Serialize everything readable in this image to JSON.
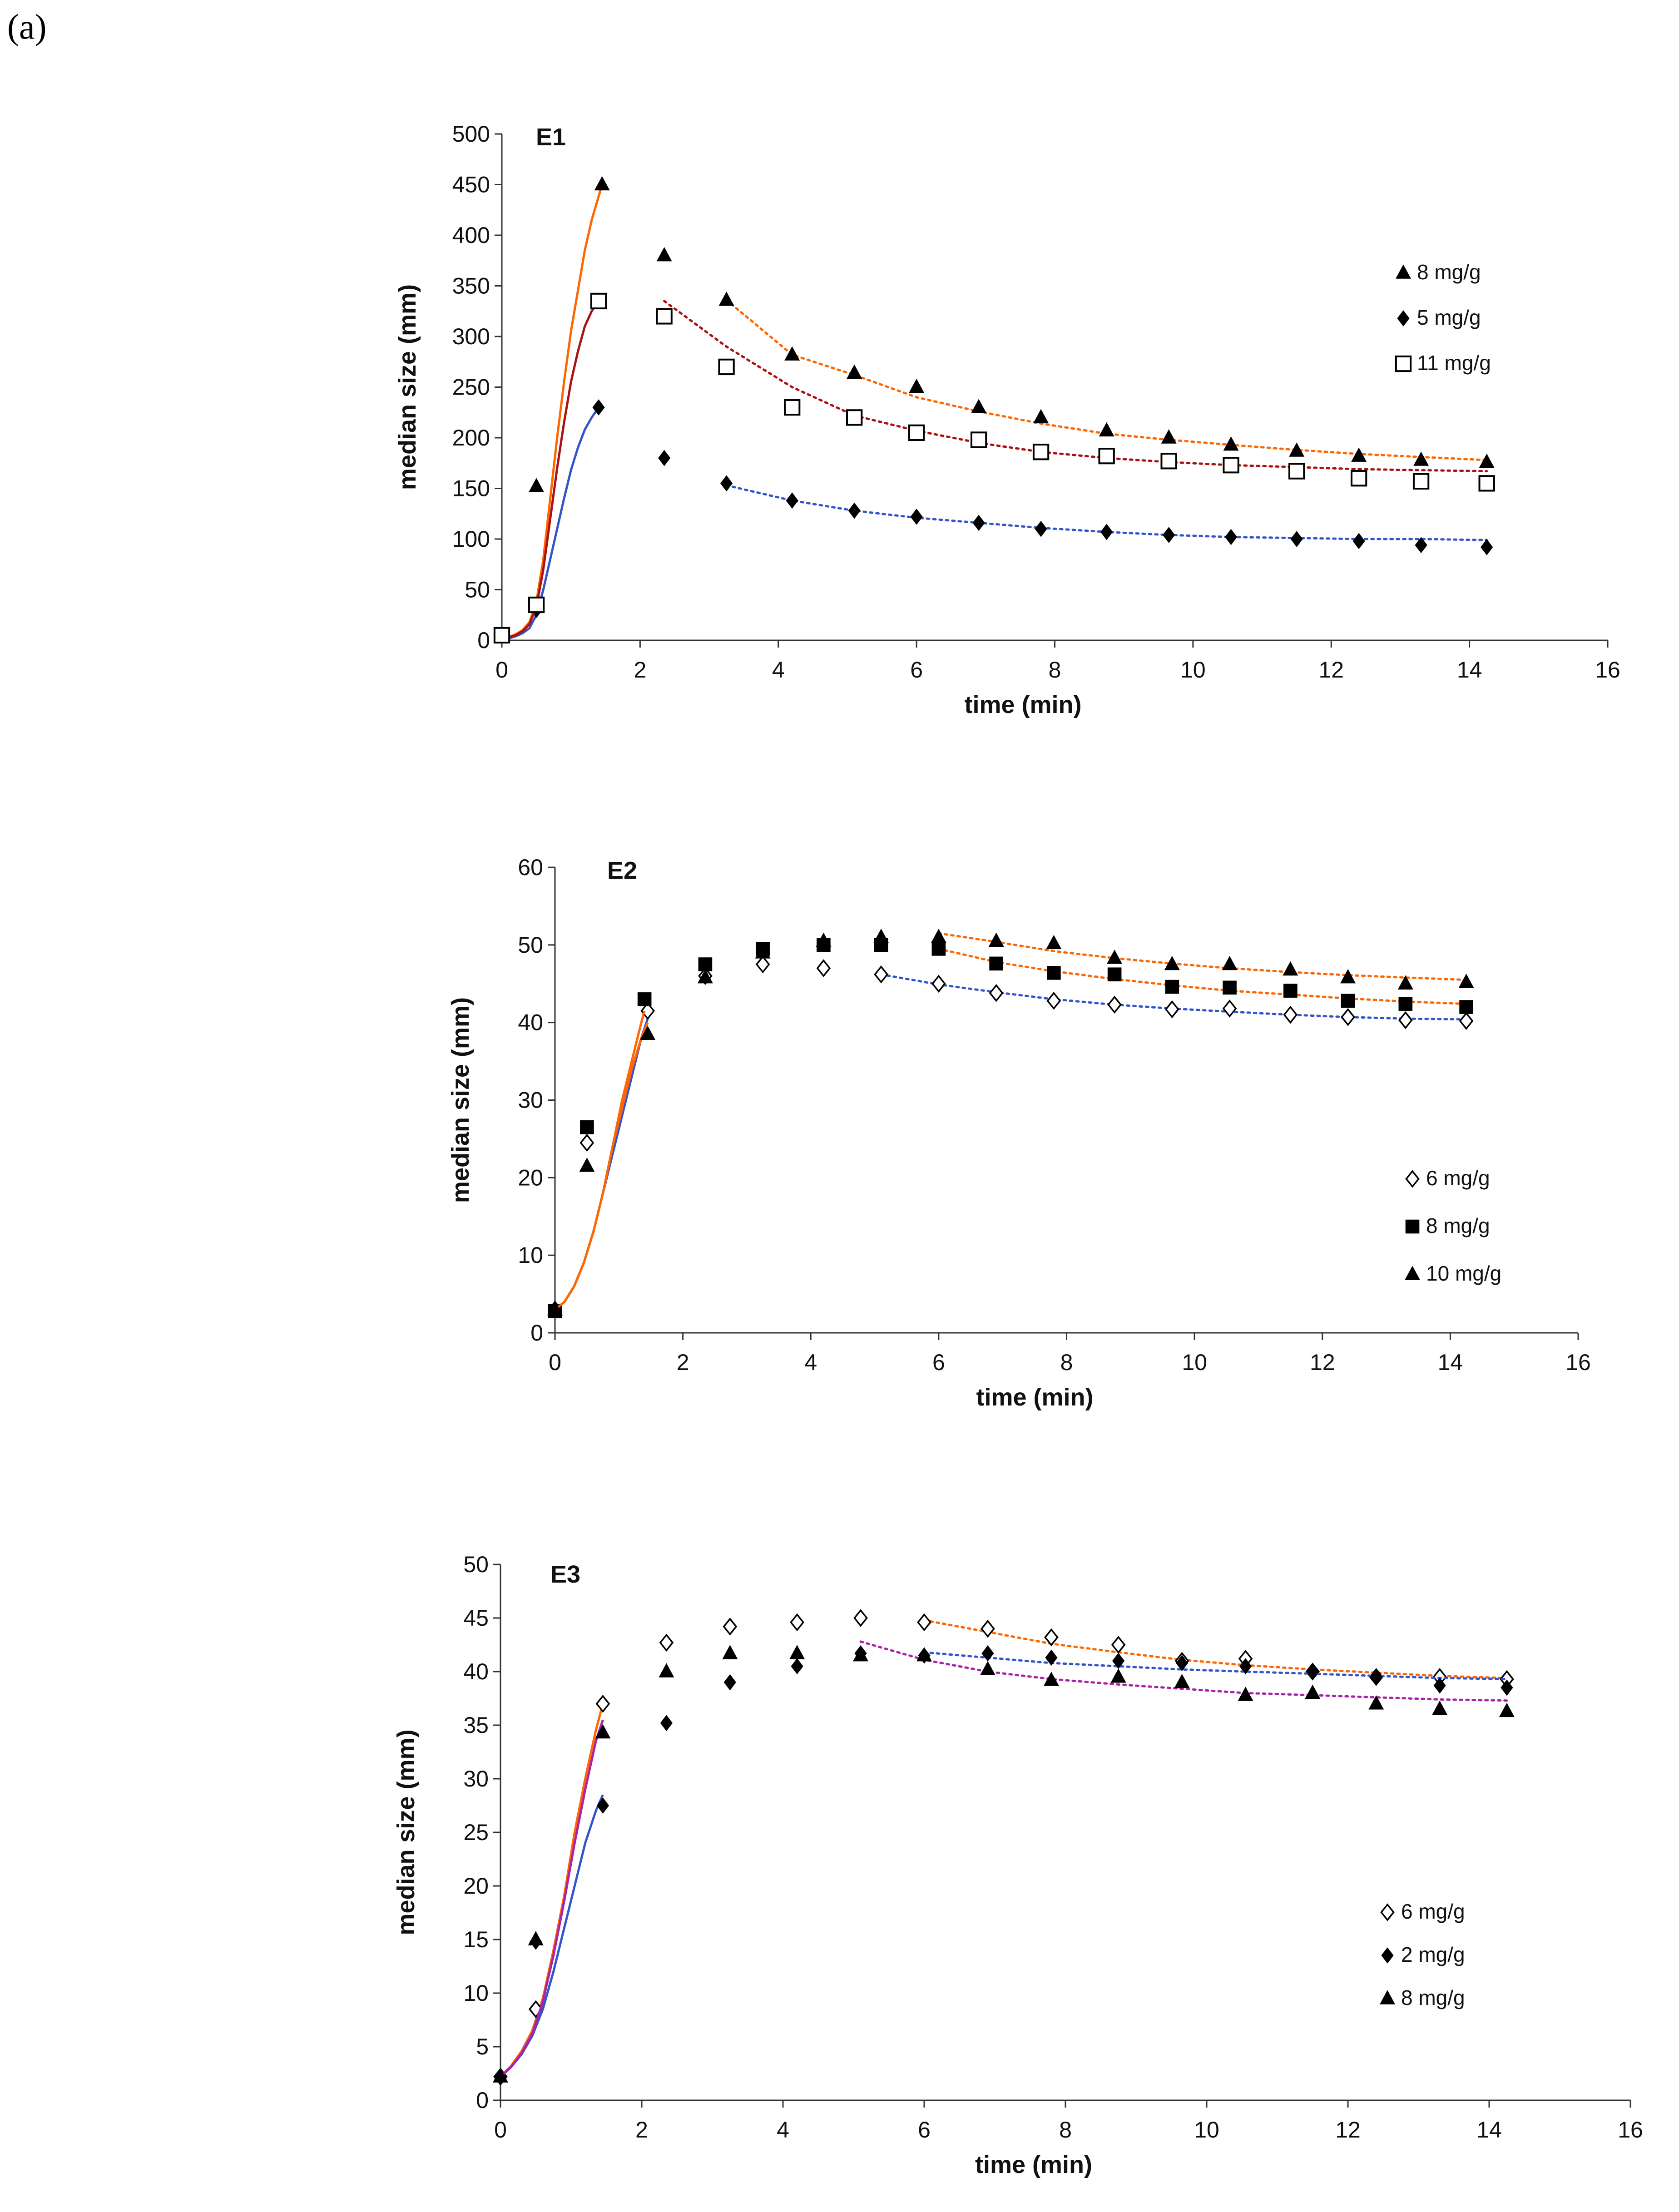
{
  "figure_label": "(a)",
  "chart_data": [
    {
      "type": "scatter",
      "title": "E1",
      "xlabel": "time (min)",
      "ylabel": "median size (mm)",
      "xlim": [
        0,
        16
      ],
      "ylim": [
        0,
        500
      ],
      "xticks": [
        0,
        2,
        4,
        6,
        8,
        10,
        12,
        14,
        16
      ],
      "yticks": [
        0,
        50,
        100,
        150,
        200,
        250,
        300,
        350,
        400,
        450,
        500
      ],
      "legend_position": "right",
      "series": [
        {
          "name": "8 mg/g",
          "marker": "triangle",
          "color": "#ff6600",
          "x": [
            0.5,
            1.45,
            2.35,
            3.25,
            4.2,
            5.1,
            6.0,
            6.9,
            7.8,
            8.75,
            9.65,
            10.55,
            11.5,
            12.4,
            13.3,
            14.25
          ],
          "y": [
            152,
            450,
            380,
            336,
            282,
            264,
            250,
            230,
            220,
            207,
            200,
            193,
            187,
            182,
            178,
            176
          ],
          "growth_curve": {
            "x": [
              0,
              0.1,
              0.2,
              0.3,
              0.4,
              0.5,
              0.6,
              0.7,
              0.8,
              0.9,
              1.0,
              1.1,
              1.2,
              1.3,
              1.45
            ],
            "y": [
              2,
              3,
              6,
              10,
              18,
              38,
              80,
              140,
              200,
              255,
              305,
              345,
              385,
              415,
              450
            ]
          },
          "decay_curve": {
            "x": [
              3.25,
              4.2,
              5.1,
              6.0,
              6.9,
              7.8,
              8.75,
              9.65,
              10.55,
              11.5,
              12.4,
              13.3,
              14.25
            ],
            "y": [
              336,
              282,
              262,
              240,
              226,
              214,
              204,
              198,
              193,
              188,
              184,
              181,
              178
            ]
          }
        },
        {
          "name": "5 mg/g",
          "marker": "diamond",
          "color": "#3355cc",
          "x": [
            0.5,
            1.4,
            2.35,
            3.25,
            4.2,
            5.1,
            6.0,
            6.9,
            7.8,
            8.75,
            9.65,
            10.55,
            11.5,
            12.4,
            13.3,
            14.25
          ],
          "y": [
            30,
            230,
            180,
            155,
            138,
            128,
            122,
            116,
            110,
            107,
            104,
            102,
            100,
            98,
            94,
            92
          ],
          "growth_curve": {
            "x": [
              0,
              0.1,
              0.2,
              0.3,
              0.4,
              0.5,
              0.6,
              0.7,
              0.8,
              0.9,
              1.0,
              1.1,
              1.2,
              1.3,
              1.4
            ],
            "y": [
              1,
              2,
              4,
              7,
              12,
              25,
              50,
              80,
              110,
              140,
              168,
              190,
              208,
              220,
              230
            ]
          },
          "decay_curve": {
            "x": [
              3.25,
              4.2,
              5.1,
              6.0,
              6.9,
              7.8,
              8.75,
              9.65,
              10.55,
              11.5,
              12.4,
              13.3,
              14.25
            ],
            "y": [
              153,
              138,
              128,
              121,
              116,
              111,
              107,
              104,
              102,
              101,
              100,
              100,
              99
            ]
          }
        },
        {
          "name": "11 mg/g",
          "marker": "square-open",
          "color": "#aa1111",
          "x": [
            0,
            0.5,
            1.4,
            2.35,
            3.25,
            4.2,
            5.1,
            6.0,
            6.9,
            7.8,
            8.75,
            9.65,
            10.55,
            11.5,
            12.4,
            13.3,
            14.25
          ],
          "y": [
            5,
            35,
            335,
            320,
            270,
            230,
            220,
            205,
            198,
            186,
            182,
            177,
            173,
            167,
            160,
            157,
            155
          ],
          "growth_curve": {
            "x": [
              0,
              0.1,
              0.2,
              0.3,
              0.4,
              0.5,
              0.6,
              0.7,
              0.8,
              0.9,
              1.0,
              1.1,
              1.2,
              1.3,
              1.4
            ],
            "y": [
              2,
              3,
              5,
              9,
              16,
              33,
              70,
              120,
              170,
              215,
              255,
              285,
              310,
              325,
              335
            ]
          },
          "decay_curve": {
            "x": [
              2.35,
              3.25,
              4.2,
              5.1,
              6.0,
              6.9,
              7.8,
              8.75,
              9.65,
              10.55,
              11.5,
              12.4,
              13.3,
              14.25
            ],
            "y": [
              335,
              290,
              250,
              222,
              207,
              195,
              186,
              180,
              176,
              173,
              171,
              169,
              168,
              167
            ]
          }
        }
      ]
    },
    {
      "type": "scatter",
      "title": "E2",
      "xlabel": "time (min)",
      "ylabel": "median size (mm)",
      "xlim": [
        0,
        16
      ],
      "ylim": [
        0,
        60
      ],
      "xticks": [
        0,
        2,
        4,
        6,
        8,
        10,
        12,
        14,
        16
      ],
      "yticks": [
        0,
        10,
        20,
        30,
        40,
        50,
        60
      ],
      "legend_position": "right",
      "series": [
        {
          "name": "6 mg/g",
          "marker": "diamond-open",
          "color": "#3355cc",
          "x": [
            0,
            0.5,
            1.45,
            2.35,
            3.25,
            4.2,
            5.1,
            6.0,
            6.9,
            7.8,
            8.75,
            9.65,
            10.55,
            11.5,
            12.4,
            13.3,
            14.25
          ],
          "y": [
            3,
            24.5,
            41.5,
            46,
            47.5,
            47,
            46.2,
            45,
            43.8,
            42.8,
            42.3,
            41.7,
            41.8,
            41,
            40.7,
            40.3,
            40.2
          ],
          "growth_curve": {
            "x": [
              0,
              0.15,
              0.3,
              0.45,
              0.6,
              0.75,
              0.9,
              1.05,
              1.2,
              1.35,
              1.45
            ],
            "y": [
              3,
              4,
              6,
              9,
              13,
              18,
              23,
              28,
              33,
              38,
              40.5
            ]
          },
          "decay_curve": {
            "x": [
              5.1,
              6.0,
              6.9,
              7.8,
              8.75,
              9.65,
              10.55,
              11.5,
              12.4,
              13.3,
              14.25
            ],
            "y": [
              46.2,
              44.9,
              43.9,
              43.0,
              42.3,
              41.8,
              41.4,
              41.0,
              40.7,
              40.5,
              40.4
            ]
          }
        },
        {
          "name": "8 mg/g",
          "marker": "square",
          "color": "#ff6600",
          "x": [
            0,
            0.5,
            1.4,
            2.35,
            3.25,
            4.2,
            5.1,
            6.0,
            6.9,
            7.8,
            8.75,
            9.65,
            10.55,
            11.5,
            12.4,
            13.3,
            14.25
          ],
          "y": [
            2.8,
            26.5,
            43,
            47.5,
            49.5,
            50,
            50,
            49.5,
            47.6,
            46.4,
            46.2,
            44.6,
            44.5,
            44.1,
            42.8,
            42.4,
            42
          ],
          "growth_curve": {
            "x": [
              0,
              0.15,
              0.3,
              0.45,
              0.6,
              0.75,
              0.9,
              1.05,
              1.2,
              1.35,
              1.4
            ],
            "y": [
              3,
              4,
              6,
              9,
              13,
              18,
              24,
              30,
              35,
              40,
              41.5
            ]
          },
          "decay_curve": {
            "x": [
              6.0,
              6.9,
              7.8,
              8.75,
              9.65,
              10.55,
              11.5,
              12.4,
              13.3,
              14.25
            ],
            "y": [
              49.5,
              47.8,
              46.6,
              45.6,
              44.8,
              44.1,
              43.6,
              43.1,
              42.7,
              42.4
            ]
          }
        },
        {
          "name": "10 mg/g",
          "marker": "triangle",
          "color": "#ff6600",
          "x": [
            0,
            0.5,
            1.45,
            2.35,
            3.25,
            4.2,
            5.1,
            6.0,
            6.9,
            7.8,
            8.75,
            9.65,
            10.55,
            11.5,
            12.4,
            13.3,
            14.25
          ],
          "y": [
            3,
            21.5,
            38.5,
            45.8,
            49,
            50.5,
            51,
            51,
            50.5,
            50.2,
            48.3,
            47.5,
            47.5,
            46.8,
            45.8,
            45,
            45.2
          ],
          "growth_curve": {
            "x": [
              0,
              0.15,
              0.3,
              0.45,
              0.6,
              0.75,
              0.9,
              1.05,
              1.2,
              1.35,
              1.45
            ],
            "y": [
              3,
              4,
              6,
              9,
              13,
              18,
              24,
              29,
              34,
              38,
              40
            ]
          },
          "decay_curve": {
            "x": [
              6.0,
              6.9,
              7.8,
              8.75,
              9.65,
              10.55,
              11.5,
              12.4,
              13.3,
              14.25
            ],
            "y": [
              51.5,
              50.4,
              49.2,
              48.3,
              47.6,
              47.0,
              46.5,
              46.1,
              45.8,
              45.5
            ]
          }
        }
      ]
    },
    {
      "type": "scatter",
      "title": "E3",
      "xlabel": "time (min)",
      "ylabel": "median size (mm)",
      "xlim": [
        0,
        16
      ],
      "ylim": [
        0,
        50
      ],
      "xticks": [
        0,
        2,
        4,
        6,
        8,
        10,
        12,
        14,
        16
      ],
      "yticks": [
        0,
        5,
        10,
        15,
        20,
        25,
        30,
        35,
        40,
        45,
        50
      ],
      "legend_position": "right",
      "series": [
        {
          "name": "6 mg/g",
          "marker": "diamond-open",
          "color": "#ff6600",
          "x": [
            0,
            0.5,
            1.45,
            2.35,
            3.25,
            4.2,
            5.1,
            6.0,
            6.9,
            7.8,
            8.75,
            9.65,
            10.55,
            11.5,
            12.4,
            13.3,
            14.25
          ],
          "y": [
            2.2,
            8.5,
            37,
            42.7,
            44.2,
            44.6,
            45,
            44.6,
            44,
            43.2,
            42.5,
            41,
            41.2,
            40,
            39.5,
            39.5,
            39.3
          ],
          "growth_curve": {
            "x": [
              0,
              0.15,
              0.3,
              0.45,
              0.6,
              0.75,
              0.9,
              1.05,
              1.2,
              1.35,
              1.45
            ],
            "y": [
              2.2,
              3.2,
              4.6,
              6.5,
              9.5,
              14,
              19,
              25,
              30,
              34.5,
              37
            ]
          },
          "decay_curve": {
            "x": [
              6.0,
              6.9,
              7.8,
              8.75,
              9.65,
              10.55,
              11.5,
              12.4,
              13.3,
              14.25
            ],
            "y": [
              44.8,
              43.7,
              42.6,
              41.8,
              41.1,
              40.6,
              40.2,
              39.9,
              39.6,
              39.4
            ]
          }
        },
        {
          "name": "2 mg/g",
          "marker": "diamond",
          "color": "#3355cc",
          "x": [
            0,
            0.5,
            1.45,
            2.35,
            3.25,
            4.2,
            5.1,
            6.0,
            6.9,
            7.8,
            8.75,
            9.65,
            10.55,
            11.5,
            12.4,
            13.3,
            14.25
          ],
          "y": [
            2.2,
            14.8,
            27.5,
            35.2,
            39,
            40.5,
            41.7,
            41.5,
            41.7,
            41.3,
            41,
            40.8,
            40.5,
            40,
            39.5,
            38.7,
            38.5
          ],
          "growth_curve": {
            "x": [
              0,
              0.15,
              0.3,
              0.45,
              0.6,
              0.75,
              0.9,
              1.05,
              1.2,
              1.35,
              1.45
            ],
            "y": [
              2.2,
              3.1,
              4.3,
              6,
              8.5,
              12,
              16,
              20,
              24,
              27,
              28.5
            ]
          },
          "decay_curve": {
            "x": [
              6.0,
              6.9,
              7.8,
              8.75,
              9.65,
              10.55,
              11.5,
              12.4,
              13.3,
              14.25
            ],
            "y": [
              41.8,
              41.3,
              40.8,
              40.5,
              40.2,
              40.0,
              39.8,
              39.6,
              39.4,
              39.3
            ]
          }
        },
        {
          "name": "8 mg/g",
          "marker": "triangle",
          "color": "#aa22aa",
          "x": [
            0,
            0.5,
            1.45,
            2.35,
            3.25,
            4.2,
            5.1,
            6.0,
            6.9,
            7.8,
            8.75,
            9.65,
            10.55,
            11.5,
            12.4,
            13.3,
            14.25
          ],
          "y": [
            2.2,
            15,
            34.3,
            40,
            41.7,
            41.7,
            41.5,
            41.5,
            40.2,
            39.2,
            39.5,
            39,
            37.8,
            38,
            37,
            36.5,
            36.3
          ],
          "growth_curve": {
            "x": [
              0,
              0.15,
              0.3,
              0.45,
              0.6,
              0.75,
              0.9,
              1.05,
              1.2,
              1.35,
              1.45
            ],
            "y": [
              2.2,
              3.1,
              4.4,
              6.2,
              9.2,
              13.5,
              18.5,
              24,
              29,
              33.5,
              35.5
            ]
          },
          "decay_curve": {
            "x": [
              5.1,
              6.0,
              6.9,
              7.8,
              8.75,
              9.65,
              10.55,
              11.5,
              12.4,
              13.3,
              14.25
            ],
            "y": [
              42.8,
              41.1,
              40.0,
              39.3,
              38.8,
              38.4,
              38.0,
              37.8,
              37.6,
              37.4,
              37.3
            ]
          }
        }
      ]
    }
  ]
}
